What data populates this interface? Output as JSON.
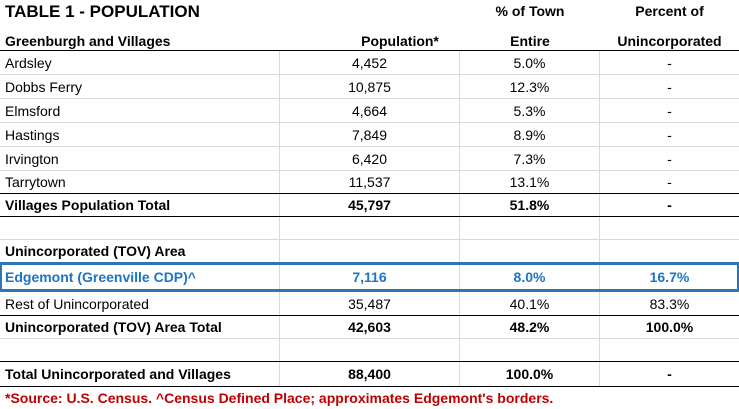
{
  "table": {
    "title": "TABLE 1 - POPULATION",
    "subtitle": "Greenburgh and Villages",
    "headers": {
      "population": "Population*",
      "pct_town_line1": "% of Town",
      "pct_town_line2": "Entire",
      "pct_uninc_line1": "Percent of",
      "pct_uninc_line2": "Unincorporated"
    },
    "villages": [
      {
        "name": "Ardsley",
        "population": "4,452",
        "pct_town": "5.0%",
        "pct_uninc": "-"
      },
      {
        "name": "Dobbs Ferry",
        "population": "10,875",
        "pct_town": "12.3%",
        "pct_uninc": "-"
      },
      {
        "name": "Elmsford",
        "population": "4,664",
        "pct_town": "5.3%",
        "pct_uninc": "-"
      },
      {
        "name": "Hastings",
        "population": "7,849",
        "pct_town": "8.9%",
        "pct_uninc": "-"
      },
      {
        "name": "Irvington",
        "population": "6,420",
        "pct_town": "7.3%",
        "pct_uninc": "-"
      },
      {
        "name": "Tarrytown",
        "population": "11,537",
        "pct_town": "13.1%",
        "pct_uninc": "-"
      }
    ],
    "villages_total": {
      "name": "Villages Population Total",
      "population": "45,797",
      "pct_town": "51.8%",
      "pct_uninc": "-"
    },
    "uninc_heading": "Unincorporated (TOV) Area",
    "edgemont": {
      "name": "Edgemont (Greenville CDP)^",
      "population": "7,116",
      "pct_town": "8.0%",
      "pct_uninc": "16.7%"
    },
    "rest": {
      "name": "Rest of Unincorporated",
      "population": "35,487",
      "pct_town": "40.1%",
      "pct_uninc": "83.3%"
    },
    "uninc_total": {
      "name": "Unincorporated (TOV) Area Total",
      "population": "42,603",
      "pct_town": "48.2%",
      "pct_uninc": "100.0%"
    },
    "grand_total": {
      "name": "Total Unincorporated and Villages",
      "population": "88,400",
      "pct_town": "100.0%",
      "pct_uninc": "-"
    },
    "source_note": "*Source: U.S. Census.   ^Census Defined Place; approximates Edgemont's borders."
  },
  "colors": {
    "highlight_border": "#2e75b6",
    "highlight_text": "#1f74c4",
    "source_text": "#c00000"
  }
}
